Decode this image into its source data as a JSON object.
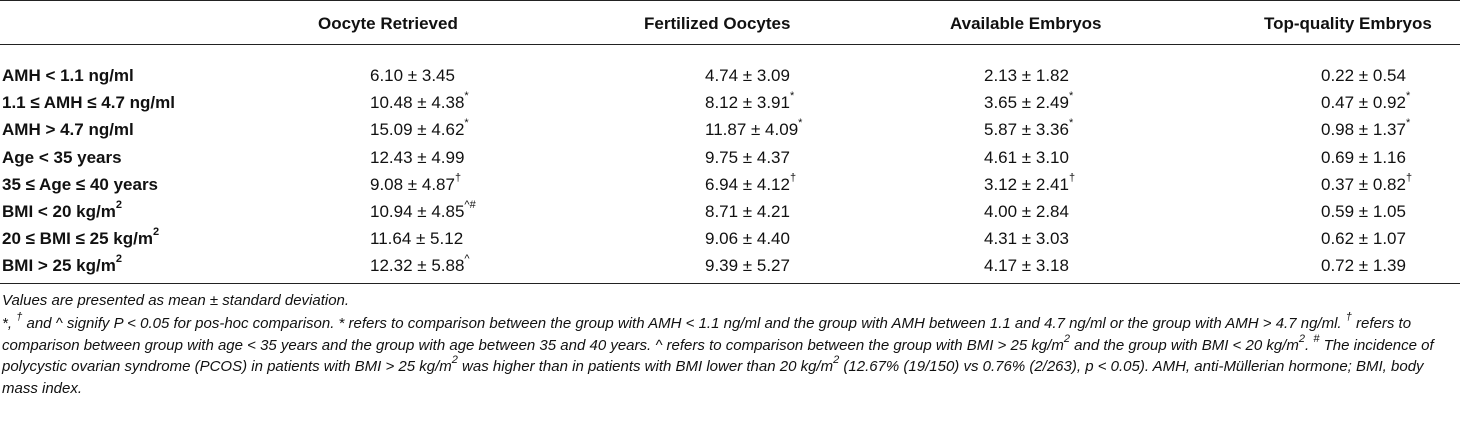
{
  "headers": [
    "Oocyte Retrieved",
    "Fertilized Oocytes",
    "Available Embryos",
    "Top-quality Embryos"
  ],
  "rows": [
    {
      "label": "AMH < 1.1 ng/ml",
      "label_sup": "",
      "cells": [
        {
          "v": "6.10 ± 3.45",
          "s": ""
        },
        {
          "v": "4.74 ± 3.09",
          "s": ""
        },
        {
          "v": "2.13 ± 1.82",
          "s": ""
        },
        {
          "v": "0.22 ± 0.54",
          "s": ""
        }
      ]
    },
    {
      "label": "1.1 ≤ AMH ≤ 4.7 ng/ml",
      "label_sup": "",
      "cells": [
        {
          "v": "10.48 ± 4.38",
          "s": "*"
        },
        {
          "v": "8.12 ± 3.91",
          "s": "*"
        },
        {
          "v": "3.65 ± 2.49",
          "s": "*"
        },
        {
          "v": "0.47 ± 0.92",
          "s": "*"
        }
      ]
    },
    {
      "label": "AMH > 4.7 ng/ml",
      "label_sup": "",
      "cells": [
        {
          "v": "15.09 ± 4.62",
          "s": "*"
        },
        {
          "v": "11.87 ± 4.09",
          "s": "*"
        },
        {
          "v": "5.87 ± 3.36",
          "s": "*"
        },
        {
          "v": "0.98 ± 1.37",
          "s": "*"
        }
      ]
    },
    {
      "label": "Age < 35 years",
      "label_sup": "",
      "cells": [
        {
          "v": "12.43 ± 4.99",
          "s": ""
        },
        {
          "v": "9.75 ± 4.37",
          "s": ""
        },
        {
          "v": "4.61 ± 3.10",
          "s": ""
        },
        {
          "v": "0.69 ± 1.16",
          "s": ""
        }
      ]
    },
    {
      "label": "35 ≤ Age ≤ 40 years",
      "label_sup": "",
      "cells": [
        {
          "v": "9.08 ± 4.87",
          "s": "†"
        },
        {
          "v": "6.94 ± 4.12",
          "s": "†"
        },
        {
          "v": "3.12 ± 2.41",
          "s": "†"
        },
        {
          "v": "0.37 ± 0.82",
          "s": "†"
        }
      ]
    },
    {
      "label": "BMI < 20 kg/m",
      "label_sup": "2",
      "cells": [
        {
          "v": "10.94 ± 4.85",
          "s": "^#"
        },
        {
          "v": "8.71 ± 4.21",
          "s": ""
        },
        {
          "v": "4.00 ± 2.84",
          "s": ""
        },
        {
          "v": "0.59 ± 1.05",
          "s": ""
        }
      ]
    },
    {
      "label": "20 ≤ BMI ≤ 25 kg/m",
      "label_sup": "2",
      "cells": [
        {
          "v": "11.64 ± 5.12",
          "s": ""
        },
        {
          "v": "9.06 ± 4.40",
          "s": ""
        },
        {
          "v": "4.31 ± 3.03",
          "s": ""
        },
        {
          "v": "0.62 ± 1.07",
          "s": ""
        }
      ]
    },
    {
      "label": "BMI > 25 kg/m",
      "label_sup": "2",
      "cells": [
        {
          "v": "12.32 ± 5.88",
          "s": "^"
        },
        {
          "v": "9.39 ± 5.27",
          "s": ""
        },
        {
          "v": "4.17 ± 3.18",
          "s": ""
        },
        {
          "v": "0.72 ± 1.39",
          "s": ""
        }
      ]
    }
  ],
  "footnote_1": "Values are presented as mean ± standard deviation.",
  "footnote_2": [
    {
      "t": "*, "
    },
    {
      "t": "†",
      "sup": true
    },
    {
      "t": " and ^ signify P < 0.05 for pos-hoc comparison. * refers to comparison between the group with AMH < 1.1 ng/ml and the group with AMH between 1.1 and 4.7 ng/ml or the group with AMH > 4.7 ng/ml. "
    },
    {
      "t": "†",
      "sup": true
    },
    {
      "t": " refers to comparison between group with age < 35 years and the group with age between 35 and 40 years. ^ refers to comparison between the group with BMI > 25 kg/m"
    },
    {
      "t": "2",
      "sup": true
    },
    {
      "t": " and the group with BMI < 20 kg/m"
    },
    {
      "t": "2",
      "sup": true
    },
    {
      "t": ". "
    },
    {
      "t": "#",
      "sup": true
    },
    {
      "t": " The incidence of polycystic ovarian syndrome (PCOS) in patients with BMI > 25 kg/m"
    },
    {
      "t": "2",
      "sup": true
    },
    {
      "t": " was higher than in patients with BMI lower than 20 kg/m"
    },
    {
      "t": "2",
      "sup": true
    },
    {
      "t": " (12.67% (19/150) vs 0.76% (2/263), p < 0.05). AMH, anti-Müllerian hormone; BMI, body mass index."
    }
  ]
}
